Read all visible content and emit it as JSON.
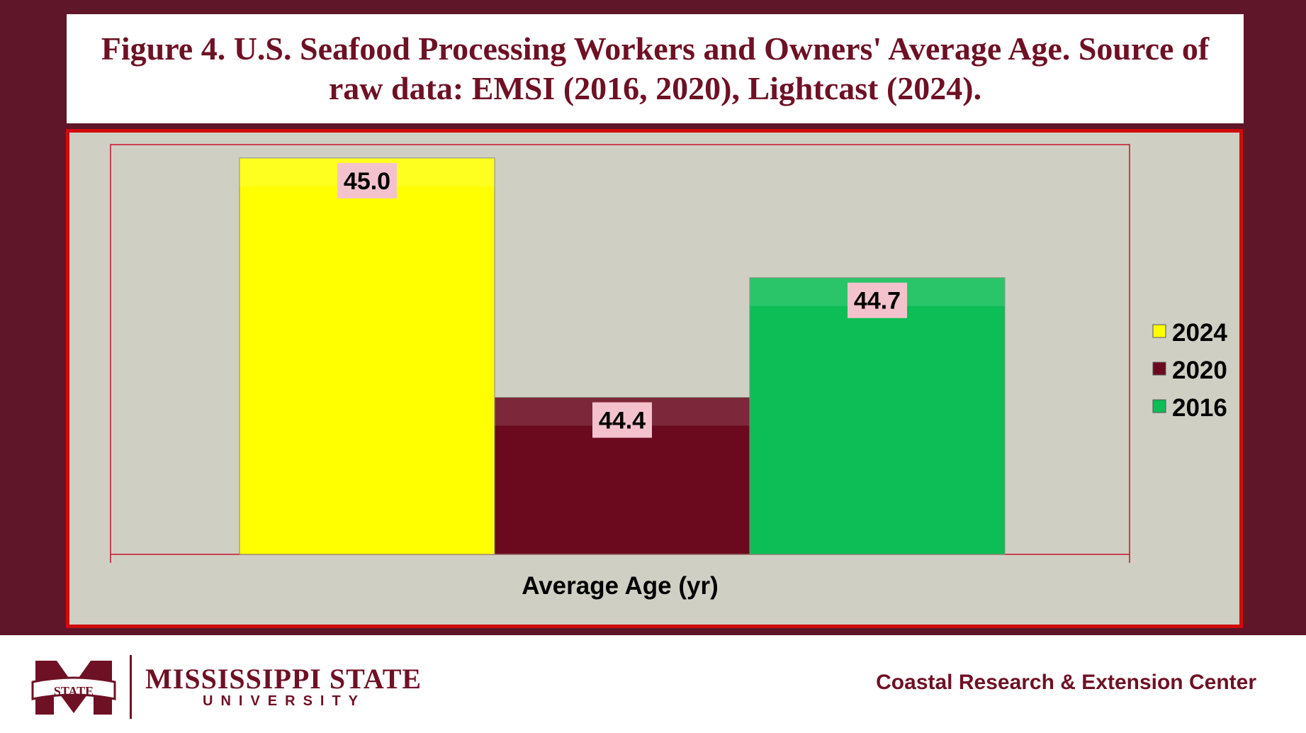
{
  "title": "Figure 4. U.S. Seafood Processing Workers and Owners' Average Age. Source of raw data: EMSI (2016, 2020), Lightcast (2024).",
  "chart_data": {
    "type": "bar",
    "xlabel": "Average Age (yr)",
    "ylabel": "",
    "categories": [
      "Average Age (yr)"
    ],
    "series": [
      {
        "name": "2024",
        "values": [
          45.0
        ],
        "label": "45.0",
        "color": "#ffff00"
      },
      {
        "name": "2020",
        "values": [
          44.4
        ],
        "label": "44.4",
        "color": "#6b0a1f"
      },
      {
        "name": "2016",
        "values": [
          44.7
        ],
        "label": "44.7",
        "color": "#0dbd55"
      }
    ],
    "legend_position": "right",
    "grid": false,
    "data_label_bg": "#f4c2cd"
  },
  "footer": {
    "logo_name": "MISSISSIPPI STATE",
    "logo_sub": "UNIVERSITY",
    "logo_badge": "STATE",
    "center_name": "Coastal Research & Extension Center"
  }
}
